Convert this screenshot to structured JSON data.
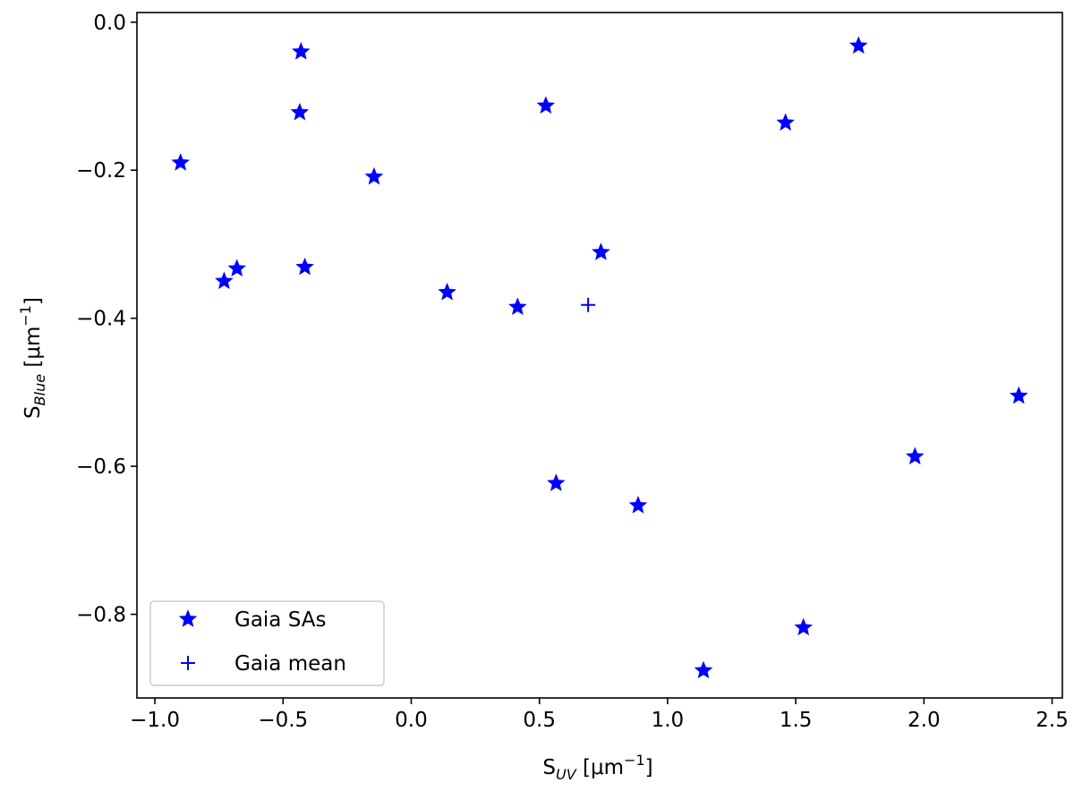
{
  "chart_data": {
    "type": "scatter",
    "xlim": [
      -1.07,
      2.54
    ],
    "ylim": [
      -0.913,
      0.013
    ],
    "xticks": [
      -1.0,
      -0.5,
      0.0,
      0.5,
      1.0,
      1.5,
      2.0,
      2.5
    ],
    "xtick_labels": [
      "−1.0",
      "−0.5",
      "0.0",
      "0.5",
      "1.0",
      "1.5",
      "2.0",
      "2.5"
    ],
    "yticks": [
      0.0,
      -0.2,
      -0.4,
      -0.6,
      -0.8
    ],
    "ytick_labels": [
      "0.0",
      "−0.2",
      "−0.4",
      "−0.6",
      "−0.8"
    ],
    "xlabel": {
      "main": "S",
      "sub": "UV",
      "unit": " [μm",
      "exp": "−1",
      "close": "]"
    },
    "ylabel": {
      "main": "S",
      "sub": "Blue",
      "unit": " [μm",
      "exp": "−1",
      "close": "]"
    },
    "grid": false,
    "legend_position": "lower-left",
    "series": [
      {
        "name": "Gaia SAs",
        "marker": "star",
        "color": "#0000ff",
        "points": [
          {
            "x": -0.9,
            "y": -0.19
          },
          {
            "x": -0.73,
            "y": -0.35
          },
          {
            "x": -0.68,
            "y": -0.333
          },
          {
            "x": -0.43,
            "y": -0.04
          },
          {
            "x": -0.435,
            "y": -0.122
          },
          {
            "x": -0.415,
            "y": -0.331
          },
          {
            "x": -0.145,
            "y": -0.209
          },
          {
            "x": 0.14,
            "y": -0.365
          },
          {
            "x": 0.415,
            "y": -0.385
          },
          {
            "x": 0.525,
            "y": -0.113
          },
          {
            "x": 0.565,
            "y": -0.623
          },
          {
            "x": 0.74,
            "y": -0.311
          },
          {
            "x": 0.885,
            "y": -0.653
          },
          {
            "x": 1.14,
            "y": -0.876
          },
          {
            "x": 1.46,
            "y": -0.136
          },
          {
            "x": 1.53,
            "y": -0.818
          },
          {
            "x": 1.745,
            "y": -0.032
          },
          {
            "x": 1.965,
            "y": -0.587
          },
          {
            "x": 2.37,
            "y": -0.505
          }
        ]
      },
      {
        "name": "Gaia mean",
        "marker": "plus",
        "color": "#0000ff",
        "points": [
          {
            "x": 0.69,
            "y": -0.382
          }
        ]
      }
    ]
  }
}
